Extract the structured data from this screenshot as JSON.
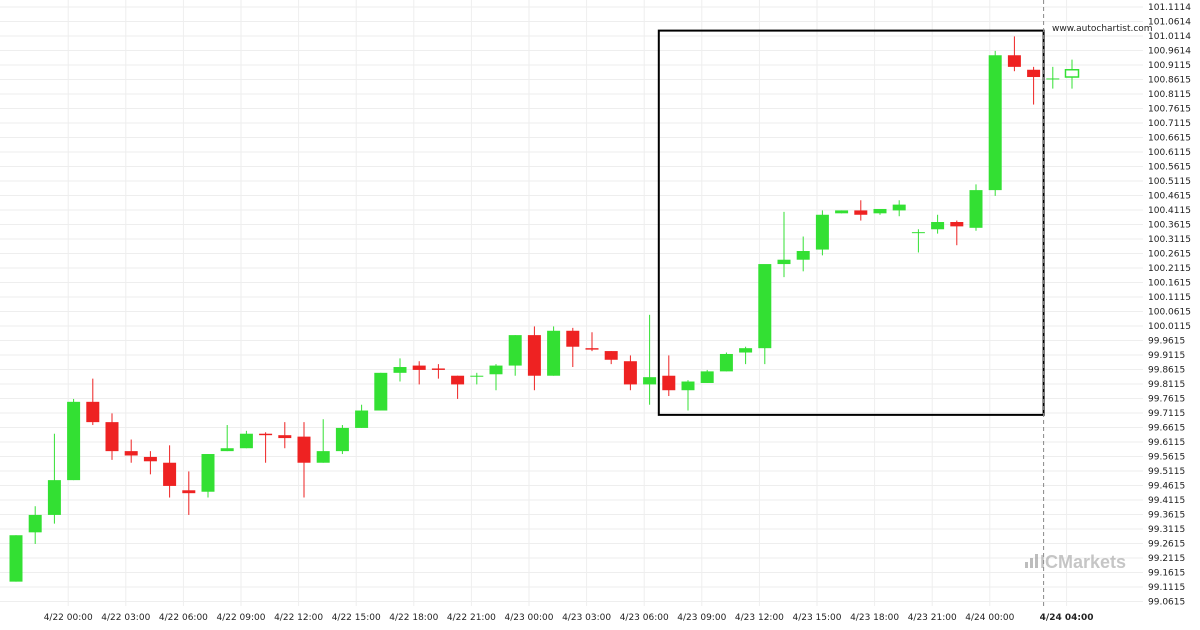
{
  "header": {
    "watermark_url": "www.autochartist.com"
  },
  "branding": {
    "logo_text": "ICMarkets"
  },
  "chart_data": {
    "type": "candlestick",
    "title": "",
    "xlabel": "",
    "ylabel": "",
    "ylim": [
      99.0615,
      101.1114
    ],
    "y_ticks": [
      "101.1114",
      "101.0614",
      "101.0114",
      "100.9614",
      "100.9115",
      "100.8615",
      "100.8115",
      "100.7615",
      "100.7115",
      "100.6615",
      "100.6115",
      "100.5615",
      "100.5115",
      "100.4615",
      "100.4115",
      "100.3615",
      "100.3115",
      "100.2615",
      "100.2115",
      "100.1615",
      "100.1115",
      "100.0615",
      "100.0115",
      "99.9615",
      "99.9115",
      "99.8615",
      "99.8115",
      "99.7615",
      "99.7115",
      "99.6615",
      "99.6115",
      "99.5615",
      "99.5115",
      "99.4615",
      "99.4115",
      "99.3615",
      "99.3115",
      "99.2615",
      "99.2115",
      "99.1615",
      "99.1115",
      "99.0615"
    ],
    "x_ticks": [
      {
        "label": "4/22 00:00",
        "index": 1
      },
      {
        "label": "4/22 03:00",
        "index": 4
      },
      {
        "label": "4/22 06:00",
        "index": 7
      },
      {
        "label": "4/22 09:00",
        "index": 10
      },
      {
        "label": "4/22 12:00",
        "index": 13
      },
      {
        "label": "4/22 15:00",
        "index": 16
      },
      {
        "label": "4/22 18:00",
        "index": 19
      },
      {
        "label": "4/22 21:00",
        "index": 22
      },
      {
        "label": "4/23 00:00",
        "index": 25
      },
      {
        "label": "4/23 03:00",
        "index": 28
      },
      {
        "label": "4/23 06:00",
        "index": 31
      },
      {
        "label": "4/23 09:00",
        "index": 34
      },
      {
        "label": "4/23 12:00",
        "index": 37
      },
      {
        "label": "4/23 15:00",
        "index": 40
      },
      {
        "label": "4/23 18:00",
        "index": 43
      },
      {
        "label": "4/23 21:00",
        "index": 46
      },
      {
        "label": "4/24 00:00",
        "index": 49
      },
      {
        "label": "4/24 04:00",
        "index": 53,
        "bold": true
      }
    ],
    "series": [
      {
        "candles": [
          {
            "o": 99.13,
            "h": 99.29,
            "l": 99.13,
            "c": 99.29
          },
          {
            "o": 99.3,
            "h": 99.39,
            "l": 99.26,
            "c": 99.36
          },
          {
            "o": 99.36,
            "h": 99.64,
            "l": 99.33,
            "c": 99.48
          },
          {
            "o": 99.48,
            "h": 99.76,
            "l": 99.48,
            "c": 99.75
          },
          {
            "o": 99.75,
            "h": 99.83,
            "l": 99.67,
            "c": 99.68
          },
          {
            "o": 99.68,
            "h": 99.71,
            "l": 99.55,
            "c": 99.58
          },
          {
            "o": 99.58,
            "h": 99.62,
            "l": 99.54,
            "c": 99.565
          },
          {
            "o": 99.56,
            "h": 99.58,
            "l": 99.5,
            "c": 99.545
          },
          {
            "o": 99.54,
            "h": 99.6,
            "l": 99.42,
            "c": 99.46
          },
          {
            "o": 99.445,
            "h": 99.51,
            "l": 99.36,
            "c": 99.435
          },
          {
            "o": 99.44,
            "h": 99.57,
            "l": 99.42,
            "c": 99.57
          },
          {
            "o": 99.58,
            "h": 99.67,
            "l": 99.58,
            "c": 99.59
          },
          {
            "o": 99.59,
            "h": 99.65,
            "l": 99.59,
            "c": 99.64
          },
          {
            "o": 99.64,
            "h": 99.645,
            "l": 99.54,
            "c": 99.635
          },
          {
            "o": 99.635,
            "h": 99.68,
            "l": 99.59,
            "c": 99.625
          },
          {
            "o": 99.63,
            "h": 99.68,
            "l": 99.42,
            "c": 99.54
          },
          {
            "o": 99.54,
            "h": 99.69,
            "l": 99.54,
            "c": 99.58
          },
          {
            "o": 99.58,
            "h": 99.67,
            "l": 99.57,
            "c": 99.66
          },
          {
            "o": 99.66,
            "h": 99.74,
            "l": 99.66,
            "c": 99.72
          },
          {
            "o": 99.72,
            "h": 99.85,
            "l": 99.72,
            "c": 99.85
          },
          {
            "o": 99.85,
            "h": 99.9,
            "l": 99.82,
            "c": 99.87
          },
          {
            "o": 99.875,
            "h": 99.89,
            "l": 99.81,
            "c": 99.86
          },
          {
            "o": 99.865,
            "h": 99.88,
            "l": 99.83,
            "c": 99.86
          },
          {
            "o": 99.84,
            "h": 99.84,
            "l": 99.76,
            "c": 99.81
          },
          {
            "o": 99.84,
            "h": 99.85,
            "l": 99.81,
            "c": 99.84
          },
          {
            "o": 99.845,
            "h": 99.88,
            "l": 99.79,
            "c": 99.875
          },
          {
            "o": 99.875,
            "h": 99.98,
            "l": 99.84,
            "c": 99.98
          },
          {
            "o": 99.98,
            "h": 100.01,
            "l": 99.79,
            "c": 99.84
          },
          {
            "o": 99.84,
            "h": 100.01,
            "l": 99.84,
            "c": 99.995
          },
          {
            "o": 99.995,
            "h": 100.005,
            "l": 99.87,
            "c": 99.94
          },
          {
            "o": 99.935,
            "h": 99.99,
            "l": 99.925,
            "c": 99.93
          },
          {
            "o": 99.925,
            "h": 99.925,
            "l": 99.88,
            "c": 99.895
          },
          {
            "o": 99.89,
            "h": 99.91,
            "l": 99.79,
            "c": 99.81
          },
          {
            "o": 99.81,
            "h": 100.05,
            "l": 99.74,
            "c": 99.835
          },
          {
            "o": 99.84,
            "h": 99.91,
            "l": 99.77,
            "c": 99.79
          },
          {
            "o": 99.79,
            "h": 99.825,
            "l": 99.72,
            "c": 99.82
          },
          {
            "o": 99.815,
            "h": 99.86,
            "l": 99.815,
            "c": 99.855
          },
          {
            "o": 99.855,
            "h": 99.92,
            "l": 99.855,
            "c": 99.915
          },
          {
            "o": 99.92,
            "h": 99.94,
            "l": 99.88,
            "c": 99.935
          },
          {
            "o": 99.935,
            "h": 100.22,
            "l": 99.88,
            "c": 100.225
          },
          {
            "o": 100.225,
            "h": 100.405,
            "l": 100.18,
            "c": 100.24
          },
          {
            "o": 100.24,
            "h": 100.32,
            "l": 100.2,
            "c": 100.27
          },
          {
            "o": 100.275,
            "h": 100.41,
            "l": 100.255,
            "c": 100.395
          },
          {
            "o": 100.4,
            "h": 100.41,
            "l": 100.4,
            "c": 100.41
          },
          {
            "o": 100.41,
            "h": 100.445,
            "l": 100.375,
            "c": 100.395
          },
          {
            "o": 100.4,
            "h": 100.415,
            "l": 100.395,
            "c": 100.415
          },
          {
            "o": 100.41,
            "h": 100.445,
            "l": 100.39,
            "c": 100.43
          },
          {
            "o": 100.335,
            "h": 100.345,
            "l": 100.265,
            "c": 100.335
          },
          {
            "o": 100.345,
            "h": 100.395,
            "l": 100.33,
            "c": 100.37
          },
          {
            "o": 100.37,
            "h": 100.375,
            "l": 100.29,
            "c": 100.355
          },
          {
            "o": 100.35,
            "h": 100.5,
            "l": 100.34,
            "c": 100.48
          },
          {
            "o": 100.48,
            "h": 100.96,
            "l": 100.46,
            "c": 100.945
          },
          {
            "o": 100.945,
            "h": 101.01,
            "l": 100.89,
            "c": 100.905
          },
          {
            "o": 100.895,
            "h": 100.905,
            "l": 100.775,
            "c": 100.87
          },
          {
            "o": 100.865,
            "h": 100.905,
            "l": 100.83,
            "c": 100.865
          },
          {
            "o": 100.87,
            "h": 100.93,
            "l": 100.83,
            "c": 100.895
          }
        ]
      }
    ],
    "pattern_box": {
      "start_index": 34,
      "end_index": 53,
      "top": 101.03,
      "bottom": 99.705
    },
    "current_time_index": 53,
    "colors": {
      "up": "#33e033",
      "down": "#ee2222",
      "box": "#000000",
      "grid": "#eeeeee",
      "marker": "#888888"
    },
    "grid": true
  }
}
